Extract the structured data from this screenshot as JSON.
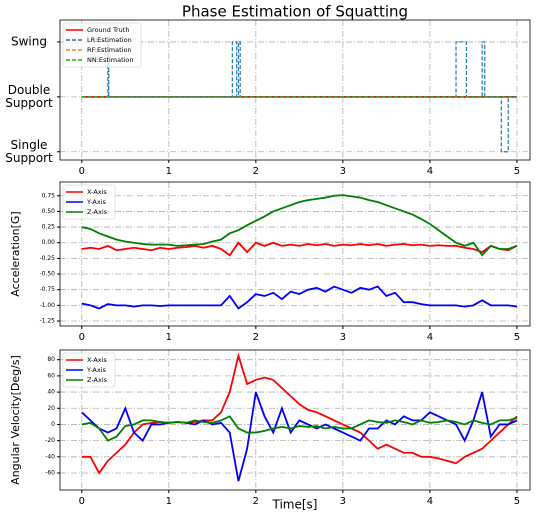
{
  "chart_data": [
    {
      "type": "line",
      "title": "Phase Estimation of Squatting",
      "xlim": [
        -0.25,
        5.15
      ],
      "xticks": [
        0,
        1,
        2,
        3,
        4,
        5
      ],
      "ylim": [
        -0.15,
        2.4
      ],
      "yticks": [
        {
          "value": 2,
          "label": "Swing"
        },
        {
          "value": 1,
          "label": "Double Support"
        },
        {
          "value": 0,
          "label": "Single Support"
        }
      ],
      "grid": true,
      "legend": "upper left",
      "series": [
        {
          "name": "Ground Truth",
          "color": "#ff0000",
          "linestyle": "solid",
          "x": [
            0,
            5
          ],
          "values": [
            1,
            1
          ]
        },
        {
          "name": "LR:Estimation",
          "color": "#1f77b4",
          "linestyle": "dashed",
          "x": [
            0,
            0.3,
            0.3,
            0.31,
            0.31,
            1.73,
            1.73,
            1.78,
            1.78,
            1.8,
            1.8,
            1.82,
            1.82,
            1.84,
            1.84,
            4.3,
            4.3,
            4.42,
            4.42,
            4.6,
            4.6,
            4.63,
            4.63,
            4.82,
            4.82,
            4.9,
            4.9,
            5
          ],
          "values": [
            1,
            1,
            2,
            2,
            1,
            1,
            2,
            2,
            1,
            1,
            2,
            2,
            1,
            1,
            1,
            1,
            2,
            2,
            1,
            1,
            2,
            2,
            1,
            1,
            0,
            0,
            1,
            1
          ]
        },
        {
          "name": "RF:Estimation",
          "color": "#ff7f0e",
          "linestyle": "dashed",
          "x": [
            0,
            5
          ],
          "values": [
            1,
            1
          ]
        },
        {
          "name": "NN:Estimation",
          "color": "#2ca02c",
          "linestyle": "dashed",
          "x": [
            0,
            5
          ],
          "values": [
            1,
            1
          ]
        }
      ]
    },
    {
      "type": "line",
      "ylabel": "Acceleration[G]",
      "xlim": [
        -0.25,
        5.15
      ],
      "xticks": [
        0,
        1,
        2,
        3,
        4,
        5
      ],
      "ylim": [
        -1.33,
        0.97
      ],
      "yticks": [
        0.75,
        {
          "value": 0.5,
          "label": "0.50"
        },
        0.25,
        {
          "value": 0,
          "label": "0.00"
        },
        -0.25,
        {
          "value": -0.5,
          "label": "-0.50"
        },
        -0.75,
        {
          "value": -1,
          "label": "-1.00"
        },
        -1.25
      ],
      "grid": true,
      "legend": "upper left",
      "x": [
        0,
        0.1,
        0.2,
        0.3,
        0.4,
        0.5,
        0.6,
        0.7,
        0.8,
        0.9,
        1,
        1.1,
        1.2,
        1.3,
        1.4,
        1.5,
        1.6,
        1.7,
        1.8,
        1.9,
        2,
        2.1,
        2.2,
        2.3,
        2.4,
        2.5,
        2.6,
        2.7,
        2.8,
        2.9,
        3,
        3.1,
        3.2,
        3.3,
        3.4,
        3.5,
        3.6,
        3.7,
        3.8,
        3.9,
        4,
        4.1,
        4.2,
        4.3,
        4.4,
        4.5,
        4.6,
        4.7,
        4.8,
        4.9,
        5
      ],
      "series": [
        {
          "name": "X-Axis",
          "color": "#ff0000",
          "values": [
            -0.1,
            -0.08,
            -0.1,
            -0.05,
            -0.12,
            -0.1,
            -0.08,
            -0.1,
            -0.12,
            -0.08,
            -0.1,
            -0.08,
            -0.07,
            -0.05,
            -0.08,
            -0.05,
            -0.1,
            -0.2,
            0.0,
            -0.15,
            0.0,
            -0.05,
            0.0,
            -0.05,
            -0.03,
            -0.05,
            -0.02,
            -0.04,
            -0.02,
            -0.05,
            -0.03,
            -0.04,
            -0.02,
            -0.04,
            -0.02,
            -0.05,
            -0.03,
            -0.02,
            -0.04,
            -0.03,
            -0.05,
            -0.04,
            -0.05,
            -0.05,
            -0.08,
            -0.1,
            -0.15,
            -0.05,
            -0.1,
            -0.12,
            -0.05
          ]
        },
        {
          "name": "Y-Axis",
          "color": "#0000ff",
          "values": [
            -0.97,
            -1.0,
            -1.05,
            -0.98,
            -1.0,
            -1.0,
            -1.02,
            -1.0,
            -1.0,
            -1.01,
            -1.0,
            -1.0,
            -1.0,
            -1.0,
            -1.0,
            -1.0,
            -1.0,
            -0.85,
            -1.05,
            -0.95,
            -0.82,
            -0.85,
            -0.8,
            -0.9,
            -0.78,
            -0.82,
            -0.75,
            -0.72,
            -0.78,
            -0.7,
            -0.75,
            -0.8,
            -0.72,
            -0.75,
            -0.7,
            -0.85,
            -0.8,
            -0.95,
            -0.95,
            -0.98,
            -1.0,
            -1.0,
            -1.0,
            -1.0,
            -1.02,
            -1.0,
            -0.92,
            -1.0,
            -1.0,
            -1.0,
            -1.02
          ]
        },
        {
          "name": "Z-Axis",
          "color": "#008000",
          "values": [
            0.25,
            0.22,
            0.15,
            0.1,
            0.05,
            0.02,
            0.0,
            -0.02,
            -0.03,
            -0.03,
            -0.03,
            -0.05,
            -0.04,
            -0.03,
            -0.02,
            0.02,
            0.05,
            0.15,
            0.2,
            0.28,
            0.35,
            0.42,
            0.5,
            0.55,
            0.6,
            0.65,
            0.68,
            0.7,
            0.72,
            0.75,
            0.76,
            0.74,
            0.72,
            0.68,
            0.65,
            0.6,
            0.55,
            0.5,
            0.45,
            0.38,
            0.3,
            0.2,
            0.1,
            0.0,
            -0.05,
            0.0,
            -0.2,
            -0.05,
            -0.1,
            -0.1,
            -0.05
          ]
        }
      ]
    },
    {
      "type": "line",
      "ylabel": "Angular Velocity[Deg/s]",
      "xlabel": "Time[s]",
      "xlim": [
        -0.25,
        5.15
      ],
      "xticks": [
        0,
        1,
        2,
        3,
        4,
        5
      ],
      "ylim": [
        -81,
        92
      ],
      "yticks": [
        80,
        60,
        40,
        20,
        0,
        -20,
        -40,
        -60
      ],
      "grid": true,
      "legend": "upper left",
      "x": [
        0,
        0.1,
        0.2,
        0.3,
        0.4,
        0.5,
        0.6,
        0.7,
        0.8,
        0.9,
        1,
        1.1,
        1.2,
        1.3,
        1.4,
        1.5,
        1.6,
        1.7,
        1.8,
        1.9,
        2,
        2.1,
        2.2,
        2.3,
        2.4,
        2.5,
        2.6,
        2.7,
        2.8,
        2.9,
        3,
        3.1,
        3.2,
        3.3,
        3.4,
        3.5,
        3.6,
        3.7,
        3.8,
        3.9,
        4,
        4.1,
        4.2,
        4.3,
        4.4,
        4.5,
        4.6,
        4.7,
        4.8,
        4.9,
        5
      ],
      "series": [
        {
          "name": "X-Axis",
          "color": "#ff0000",
          "values": [
            -40,
            -40,
            -60,
            -45,
            -35,
            -25,
            -10,
            0,
            2,
            3,
            2,
            3,
            2,
            3,
            5,
            5,
            15,
            40,
            85,
            50,
            55,
            58,
            55,
            45,
            35,
            25,
            18,
            15,
            10,
            5,
            0,
            -5,
            -10,
            -20,
            -30,
            -25,
            -30,
            -35,
            -35,
            -40,
            -40,
            -42,
            -45,
            -48,
            -40,
            -35,
            -30,
            -20,
            -10,
            0,
            10
          ]
        },
        {
          "name": "Y-Axis",
          "color": "#0000ff",
          "values": [
            15,
            5,
            -5,
            -10,
            -5,
            20,
            -10,
            -20,
            0,
            0,
            2,
            3,
            2,
            0,
            5,
            0,
            2,
            -10,
            -70,
            -30,
            40,
            10,
            -10,
            20,
            -10,
            5,
            0,
            -5,
            0,
            -5,
            -10,
            -15,
            -20,
            -5,
            -5,
            5,
            0,
            10,
            5,
            5,
            15,
            10,
            5,
            0,
            -20,
            5,
            40,
            -15,
            0,
            0,
            5
          ]
        },
        {
          "name": "Z-Axis",
          "color": "#008000",
          "values": [
            0,
            2,
            -5,
            -20,
            -15,
            -2,
            0,
            5,
            5,
            3,
            2,
            3,
            2,
            5,
            3,
            2,
            5,
            10,
            -5,
            -10,
            -10,
            -8,
            -5,
            -3,
            -5,
            -2,
            -3,
            -2,
            -5,
            -3,
            -5,
            -5,
            0,
            5,
            3,
            2,
            5,
            3,
            0,
            5,
            2,
            3,
            5,
            3,
            0,
            5,
            2,
            0,
            5,
            5,
            8
          ]
        }
      ]
    }
  ]
}
